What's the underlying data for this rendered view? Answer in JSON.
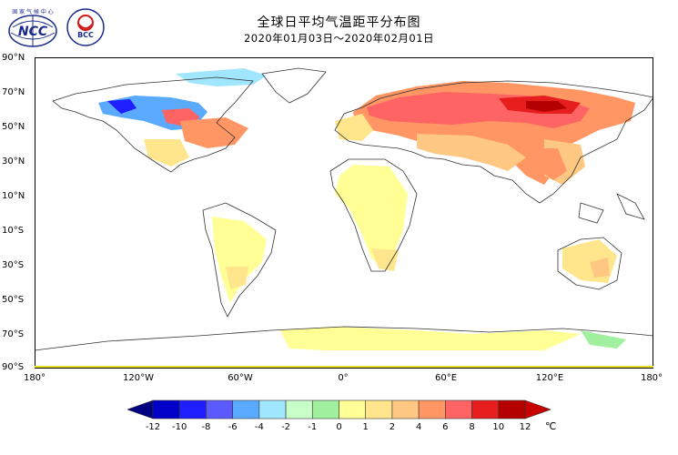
{
  "header": {
    "title": "全球日平均气温距平分布图",
    "subtitle": "2020年01月03日～2020年02月01日"
  },
  "logos": {
    "ncc": {
      "text": "NCC",
      "top_text": "国 家 气 候 中 心"
    },
    "bcc": {
      "text": "BCC"
    }
  },
  "map": {
    "lat_labels": [
      "90°N",
      "70°N",
      "50°N",
      "30°N",
      "10°N",
      "10°S",
      "30°S",
      "50°S",
      "70°S",
      "90°S"
    ],
    "lon_labels": [
      "180°",
      "120°W",
      "60°W",
      "0°",
      "60°E",
      "120°E",
      "180°"
    ]
  },
  "legend": {
    "unit": "℃",
    "ticks": [
      "-12",
      "-10",
      "-8",
      "-6",
      "-4",
      "-2",
      "-1",
      "0",
      "1",
      "2",
      "4",
      "6",
      "8",
      "10",
      "12"
    ],
    "colors": [
      "#000080",
      "#0000c8",
      "#1e1eff",
      "#5a5aff",
      "#5aaaff",
      "#a0e6ff",
      "#c8ffc8",
      "#a0f0a0",
      "#ffff96",
      "#ffe68c",
      "#ffc882",
      "#ff9664",
      "#ff6464",
      "#e61e1e",
      "#b40000",
      "#c80000"
    ]
  }
}
